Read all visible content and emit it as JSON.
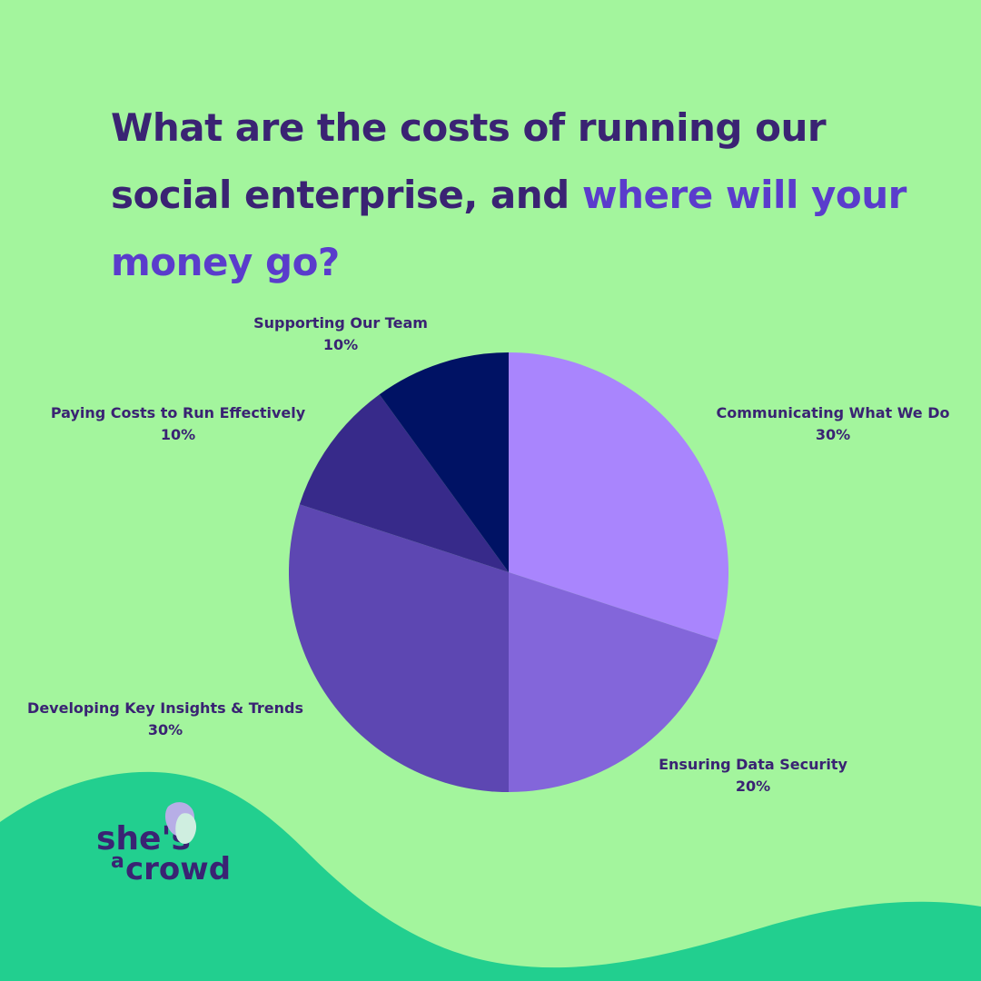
{
  "title": {
    "part1": "What are the costs of running our social enterprise, and ",
    "part2": "where will your money go?"
  },
  "brand": {
    "line1": "she's",
    "line2": "a",
    "line3": "crowd"
  },
  "colors": {
    "background": "#a3f59d",
    "wave": "#22cf8f",
    "title": "#3a2373",
    "title_highlight": "#5a3ccc"
  },
  "chart_data": {
    "type": "pie",
    "categories": [
      "Communicating What We Do",
      "Ensuring Data Security",
      "Developing Key Insights & Trends",
      "Paying Costs to Run Effectively",
      "Supporting Our Team"
    ],
    "values": [
      30,
      20,
      30,
      10,
      10
    ],
    "value_labels": [
      "30%",
      "20%",
      "30%",
      "10%",
      "10%"
    ],
    "slice_colors": [
      "#a985fd",
      "#8366da",
      "#5d47b2",
      "#372a8a",
      "#001264"
    ],
    "start": "12 o'clock",
    "direction": "clockwise"
  }
}
